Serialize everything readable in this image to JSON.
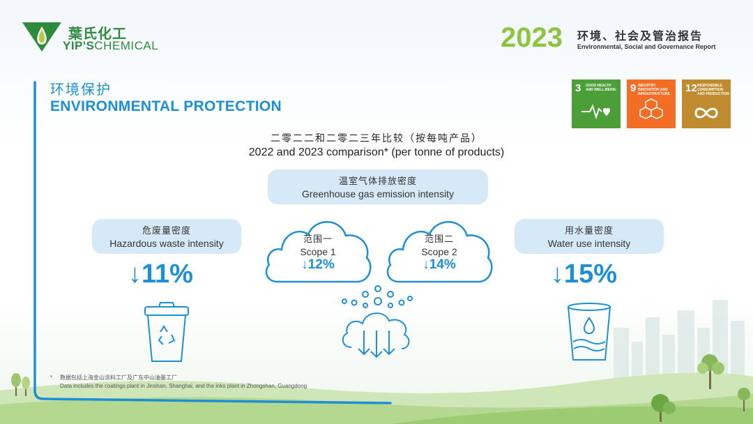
{
  "brand": {
    "name_cn": "葉氏化工",
    "name_en_bold": "YIP'S",
    "name_en_rest": "CHEMICAL",
    "green": "#2e8b3d"
  },
  "report": {
    "year": "2023",
    "title_cn": "环境、社会及管治报告",
    "title_en": "Environmental, Social and Governance Report",
    "year_color": "#8cc63f"
  },
  "section": {
    "title_cn": "环境保护",
    "title_en": "ENVIRONMENTAL PROTECTION",
    "color": "#1d8fd6"
  },
  "sdgs": [
    {
      "number": "3",
      "label": "GOOD HEALTH AND WELL-BEING",
      "color": "#4c9f38",
      "icon": "heartbeat-icon"
    },
    {
      "number": "9",
      "label": "INDUSTRY, INNOVATION AND INFRASTRUCTURE",
      "color": "#f36d25",
      "icon": "cubes-icon"
    },
    {
      "number": "12",
      "label": "RESPONSIBLE CONSUMPTION AND PRODUCTION",
      "color": "#bf8b2e",
      "icon": "infinity-icon"
    }
  ],
  "comparison": {
    "title_cn": "二零二二和二零二三年比较（按每吨产品）",
    "title_en": "2022 and 2023 comparison* (per tonne of products)"
  },
  "metrics": {
    "ghg": {
      "label_cn": "温室气体排放密度",
      "label_en": "Greenhouse gas emission intensity",
      "scope1": {
        "label_cn": "范围一",
        "label_en": "Scope 1",
        "value": "↓12%",
        "icon": "cloud-icon"
      },
      "scope2": {
        "label_cn": "范围二",
        "label_en": "Scope 2",
        "value": "↓14%",
        "icon": "cloud-icon"
      },
      "icon": "emission-cloud-icon"
    },
    "waste": {
      "label_cn": "危废量密度",
      "label_en": "Hazardous waste intensity",
      "value": "↓11%",
      "icon": "recycle-bin-icon"
    },
    "water": {
      "label_cn": "用水量密度",
      "label_en": "Water use intensity",
      "value": "↓15%",
      "icon": "water-glass-icon"
    }
  },
  "footnote": {
    "marker": "*",
    "line_cn": "数据包括上海金山涂料工厂及广东中山油墨工厂",
    "line_en": "Data includes the coatings plant in Jinshan, Shanghai, and the inks plant in Zhongshan, Guangdong"
  }
}
